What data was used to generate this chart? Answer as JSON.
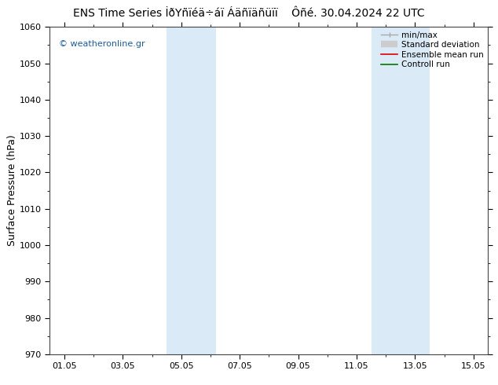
{
  "title": "ENS Time Series İðYñïéä÷áï Áäñïäñüïï    Ôñé. 30.04.2024 22 UTC",
  "ylabel": "Surface Pressure (hPa)",
  "ylim": [
    970,
    1060
  ],
  "yticks": [
    970,
    980,
    990,
    1000,
    1010,
    1020,
    1030,
    1040,
    1050,
    1060
  ],
  "xtick_labels": [
    "01.05",
    "03.05",
    "05.05",
    "07.05",
    "09.05",
    "11.05",
    "13.05",
    "15.05"
  ],
  "xtick_positions": [
    0,
    2,
    4,
    6,
    8,
    10,
    12,
    14
  ],
  "xlim": [
    -0.5,
    14.5
  ],
  "shaded_bands": [
    {
      "xmin": 3.5,
      "xmax": 5.2,
      "color": "#daeaf7"
    },
    {
      "xmin": 10.5,
      "xmax": 12.5,
      "color": "#daeaf7"
    }
  ],
  "watermark": "© weatheronline.gr",
  "watermark_color": "#1a5baa",
  "bg_color": "#ffffff",
  "title_fontsize": 10,
  "axis_label_fontsize": 9,
  "tick_fontsize": 8,
  "legend_fontsize": 7.5,
  "legend_labels": [
    "min/max",
    "Standard deviation",
    "Ensemble mean run",
    "Controll run"
  ],
  "legend_colors": [
    "#aaaaaa",
    "#cccccc",
    "#dd0000",
    "#007700"
  ],
  "spine_color": "#444444"
}
